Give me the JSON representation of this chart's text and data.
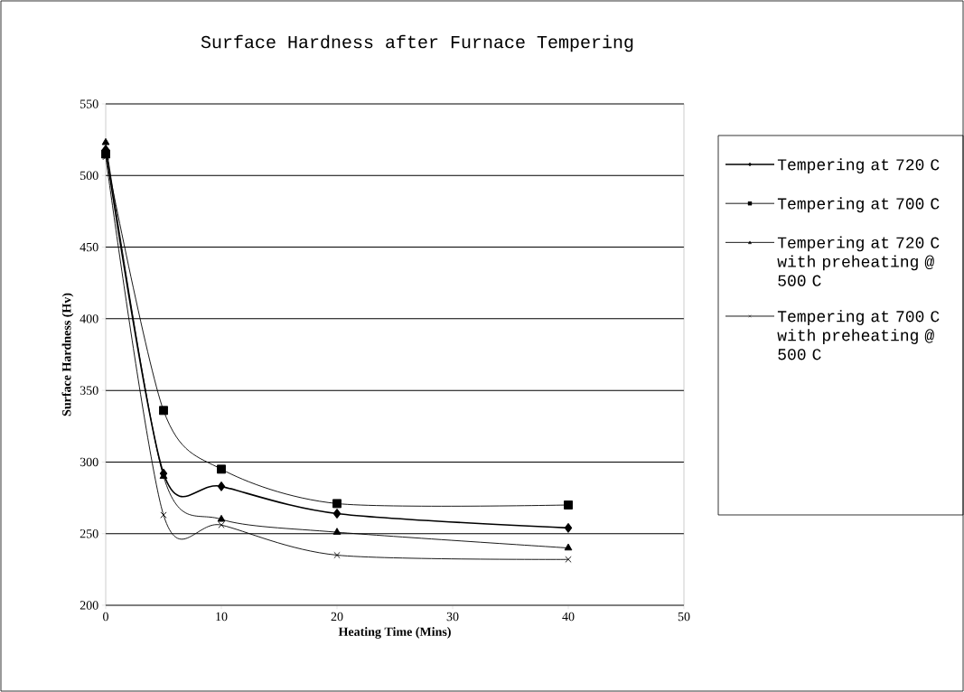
{
  "chart_data": {
    "type": "line",
    "title": "Surface Hardness after Furnace Tempering",
    "xlabel": "Heating Time (Mins)",
    "ylabel": "Surface Hardness (Hv)",
    "x": [
      0,
      5,
      10,
      20,
      40
    ],
    "series": [
      {
        "name": "Tempering at 720 C",
        "color": "#000000",
        "marker": "diamond",
        "values": [
          518,
          292,
          283,
          264,
          254
        ]
      },
      {
        "name": "Tempering at 700 C",
        "color": "#000000",
        "marker": "square",
        "values": [
          515,
          336,
          295,
          271,
          270
        ]
      },
      {
        "name": "Tempering at 720 C with preheating @ 500 C",
        "color": "#000000",
        "marker": "triangle",
        "values": [
          523,
          290,
          260,
          251,
          240
        ]
      },
      {
        "name": "Tempering at 700 C with preheating @ 500 C",
        "color": "#000000",
        "marker": "cross",
        "values": [
          513,
          263,
          256,
          235,
          232
        ]
      }
    ],
    "xlim": [
      0,
      50
    ],
    "ylim": [
      200,
      550
    ],
    "xticks": [
      0,
      10,
      20,
      30,
      40,
      50
    ],
    "yticks": [
      200,
      250,
      300,
      350,
      400,
      450,
      500,
      550
    ],
    "grid": "y",
    "legend": "right",
    "line_style": "solid"
  }
}
